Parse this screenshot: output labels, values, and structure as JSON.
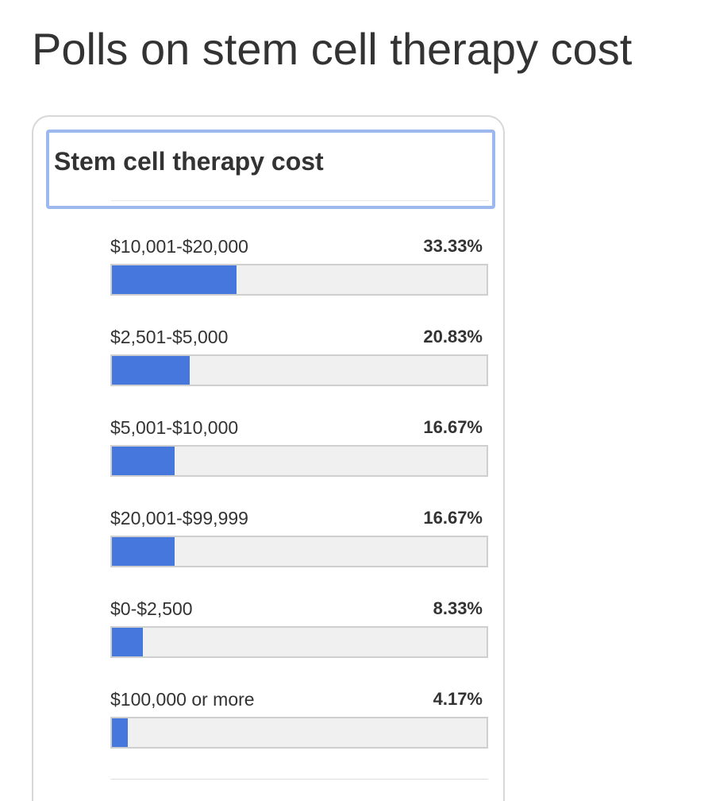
{
  "page": {
    "title": "Polls on stem cell therapy cost"
  },
  "poll": {
    "question": "Stem cell therapy cost",
    "bar_color": "#4577dd",
    "options": [
      {
        "label": "$10,001-$20,000",
        "percent_text": "33.33%",
        "percent": 33.33
      },
      {
        "label": "$2,501-$5,000",
        "percent_text": "20.83%",
        "percent": 20.83
      },
      {
        "label": "$5,001-$10,000",
        "percent_text": "16.67%",
        "percent": 16.67
      },
      {
        "label": "$20,001-$99,999",
        "percent_text": "16.67%",
        "percent": 16.67
      },
      {
        "label": "$0-$2,500",
        "percent_text": "8.33%",
        "percent": 8.33
      },
      {
        "label": "$100,000 or more",
        "percent_text": "4.17%",
        "percent": 4.17
      }
    ]
  }
}
